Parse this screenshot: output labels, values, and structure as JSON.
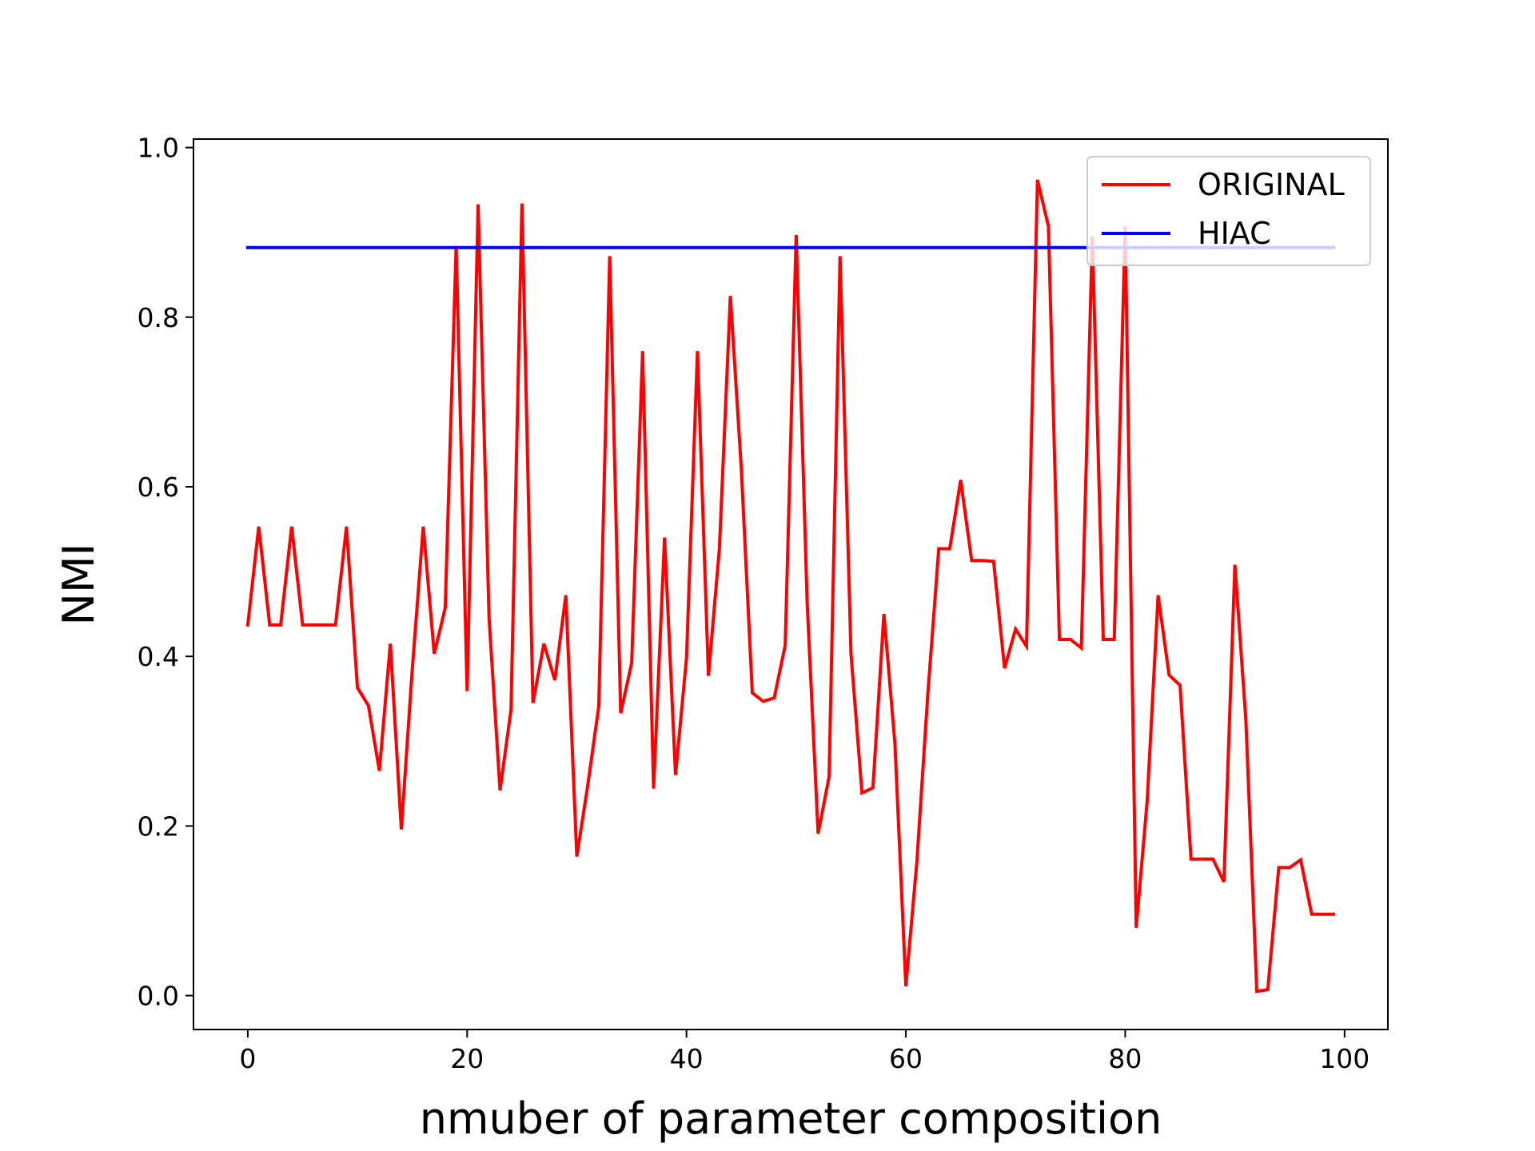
{
  "chart_data": {
    "type": "line",
    "xlabel": "nmuber of parameter composition",
    "ylabel": "NMI",
    "xlim": [
      -4.95,
      103.95
    ],
    "ylim": [
      -0.04,
      1.01
    ],
    "xticks": [
      0,
      20,
      40,
      60,
      80,
      100
    ],
    "yticks": [
      0.0,
      0.2,
      0.4,
      0.6,
      0.8,
      1.0
    ],
    "xtick_labels": [
      "0",
      "20",
      "40",
      "60",
      "80",
      "100"
    ],
    "ytick_labels": [
      "0.0",
      "0.2",
      "0.4",
      "0.6",
      "0.8",
      "1.0"
    ],
    "grid": false,
    "legend_position": "upper-right",
    "series": [
      {
        "name": "ORIGINAL",
        "color": "#ff0000",
        "x": [
          0,
          1,
          2,
          3,
          4,
          5,
          6,
          7,
          8,
          9,
          10,
          11,
          12,
          13,
          14,
          15,
          16,
          17,
          18,
          19,
          20,
          21,
          22,
          23,
          24,
          25,
          26,
          27,
          28,
          29,
          30,
          31,
          32,
          33,
          34,
          35,
          36,
          37,
          38,
          39,
          40,
          41,
          42,
          43,
          44,
          45,
          46,
          47,
          48,
          49,
          50,
          51,
          52,
          53,
          54,
          55,
          56,
          57,
          58,
          59,
          60,
          61,
          62,
          63,
          64,
          65,
          66,
          67,
          68,
          69,
          70,
          71,
          72,
          73,
          74,
          75,
          76,
          77,
          78,
          79,
          80,
          81,
          82,
          83,
          84,
          85,
          86,
          87,
          88,
          89,
          90,
          91,
          92,
          93,
          94,
          95,
          96,
          97,
          98,
          99
        ],
        "values": [
          0.437,
          0.553,
          0.437,
          0.437,
          0.553,
          0.437,
          0.437,
          0.437,
          0.437,
          0.553,
          0.363,
          0.342,
          0.265,
          0.415,
          0.196,
          0.385,
          0.553,
          0.403,
          0.457,
          0.884,
          0.359,
          0.933,
          0.445,
          0.242,
          0.337,
          0.934,
          0.345,
          0.415,
          0.372,
          0.472,
          0.164,
          0.248,
          0.341,
          0.872,
          0.333,
          0.392,
          0.76,
          0.244,
          0.54,
          0.26,
          0.398,
          0.76,
          0.377,
          0.527,
          0.825,
          0.621,
          0.357,
          0.347,
          0.351,
          0.413,
          0.897,
          0.464,
          0.191,
          0.258,
          0.872,
          0.403,
          0.239,
          0.245,
          0.45,
          0.298,
          0.011,
          0.157,
          0.355,
          0.527,
          0.527,
          0.608,
          0.513,
          0.513,
          0.512,
          0.386,
          0.432,
          0.412,
          0.962,
          0.907,
          0.42,
          0.42,
          0.41,
          0.895,
          0.42,
          0.42,
          0.907,
          0.08,
          0.229,
          0.472,
          0.378,
          0.366,
          0.161,
          0.161,
          0.161,
          0.134,
          0.508,
          0.325,
          0.005,
          0.007,
          0.151,
          0.151,
          0.16,
          0.096,
          0.096,
          0.096
        ]
      },
      {
        "name": "HIAC",
        "color": "#0000ff",
        "x": [
          0,
          99
        ],
        "values": [
          0.882,
          0.882
        ]
      }
    ]
  }
}
